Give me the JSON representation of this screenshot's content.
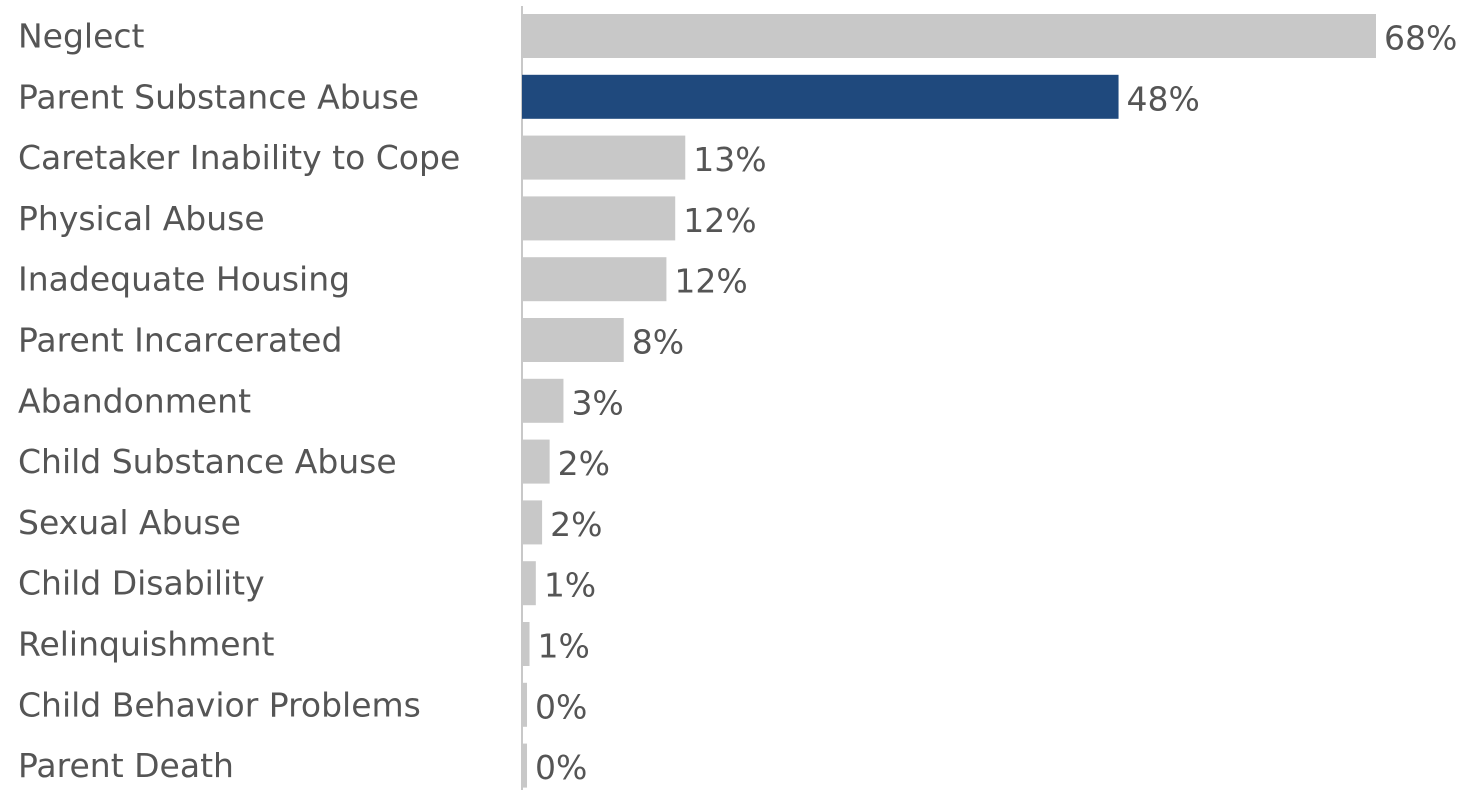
{
  "chart_data": {
    "type": "bar",
    "orientation": "horizontal",
    "title": "",
    "xlabel": "",
    "ylabel": "",
    "xlim": [
      0,
      68
    ],
    "grid": false,
    "legend": "none",
    "colors": {
      "default_bar": "#c8c8c8",
      "highlight_bar": "#1f497d",
      "axis_line": "#c8c8c8",
      "label_text": "#555555"
    },
    "highlight_category": "Parent Substance Abuse",
    "categories": [
      "Neglect",
      "Parent Substance Abuse",
      "Caretaker Inability to Cope",
      "Physical Abuse",
      "Inadequate Housing",
      "Parent Incarcerated",
      "Abandonment",
      "Child Substance Abuse",
      "Sexual Abuse",
      "Child Disability",
      "Relinquishment",
      "Child Behavior Problems",
      "Parent Death"
    ],
    "values": [
      68,
      47.5,
      13,
      12.2,
      11.5,
      8.1,
      3.3,
      2.2,
      1.6,
      1.1,
      0.6,
      0.4,
      0.4
    ],
    "value_labels": [
      "68%",
      "48%",
      "13%",
      "12%",
      "12%",
      "8%",
      "3%",
      "2%",
      "2%",
      "1%",
      "1%",
      "0%",
      "0%"
    ]
  }
}
